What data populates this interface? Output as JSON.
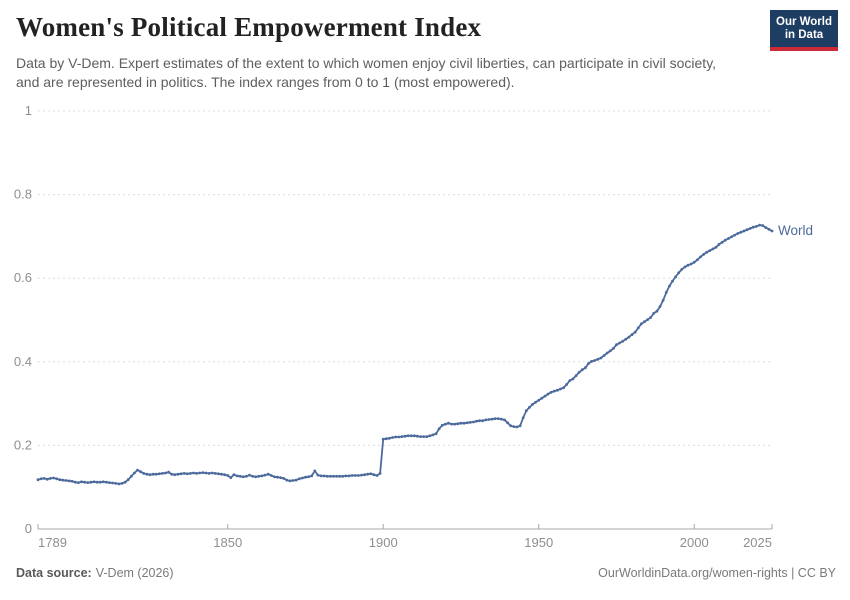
{
  "header": {
    "title": "Women's Political Empowerment Index",
    "subtitle": "Data by V-Dem. Expert estimates of the extent to which women enjoy civil liberties, can participate in civil society, and are represented in politics. The index ranges from 0 to 1 (most empowered)."
  },
  "logo": {
    "line1": "Our World",
    "line2": "in Data"
  },
  "footer": {
    "source_label": "Data source:",
    "source_value": "V-Dem (2026)",
    "credit": "OurWorldinData.org/women-rights | CC BY"
  },
  "chart_data": {
    "type": "line",
    "title": "Women's Political Empowerment Index",
    "xlabel": "",
    "ylabel": "",
    "x_range": [
      1789,
      2025
    ],
    "ylim": [
      0,
      1
    ],
    "x_ticks": [
      1789,
      1850,
      1900,
      1950,
      2000,
      2025
    ],
    "y_ticks": [
      0,
      0.2,
      0.4,
      0.6,
      0.8,
      1
    ],
    "grid": "dashed-horizontal",
    "legend_position": "end-of-line-label",
    "colors": {
      "line": "#4C6A9C",
      "grid": "#dcdcdc",
      "axis_line": "#a8a8a8",
      "axis_text": "#8f8f8f",
      "logo_navy": "#1d3d63",
      "logo_red": "#cc2a36"
    },
    "series": [
      {
        "name": "World",
        "points": [
          [
            1789,
            0.118
          ],
          [
            1790,
            0.12
          ],
          [
            1791,
            0.121
          ],
          [
            1792,
            0.119
          ],
          [
            1793,
            0.121
          ],
          [
            1794,
            0.122
          ],
          [
            1795,
            0.12
          ],
          [
            1796,
            0.118
          ],
          [
            1797,
            0.117
          ],
          [
            1798,
            0.116
          ],
          [
            1799,
            0.115
          ],
          [
            1800,
            0.114
          ],
          [
            1801,
            0.112
          ],
          [
            1802,
            0.111
          ],
          [
            1803,
            0.113
          ],
          [
            1804,
            0.112
          ],
          [
            1805,
            0.111
          ],
          [
            1806,
            0.112
          ],
          [
            1807,
            0.113
          ],
          [
            1808,
            0.112
          ],
          [
            1809,
            0.112
          ],
          [
            1810,
            0.113
          ],
          [
            1811,
            0.112
          ],
          [
            1812,
            0.111
          ],
          [
            1813,
            0.11
          ],
          [
            1814,
            0.109
          ],
          [
            1815,
            0.108
          ],
          [
            1816,
            0.109
          ],
          [
            1817,
            0.112
          ],
          [
            1818,
            0.118
          ],
          [
            1819,
            0.126
          ],
          [
            1820,
            0.134
          ],
          [
            1821,
            0.141
          ],
          [
            1822,
            0.137
          ],
          [
            1823,
            0.133
          ],
          [
            1824,
            0.131
          ],
          [
            1825,
            0.13
          ],
          [
            1826,
            0.131
          ],
          [
            1827,
            0.131
          ],
          [
            1828,
            0.132
          ],
          [
            1829,
            0.133
          ],
          [
            1830,
            0.134
          ],
          [
            1831,
            0.136
          ],
          [
            1832,
            0.131
          ],
          [
            1833,
            0.13
          ],
          [
            1834,
            0.131
          ],
          [
            1835,
            0.132
          ],
          [
            1836,
            0.133
          ],
          [
            1837,
            0.132
          ],
          [
            1838,
            0.133
          ],
          [
            1839,
            0.134
          ],
          [
            1840,
            0.133
          ],
          [
            1841,
            0.134
          ],
          [
            1842,
            0.135
          ],
          [
            1843,
            0.134
          ],
          [
            1844,
            0.133
          ],
          [
            1845,
            0.134
          ],
          [
            1846,
            0.133
          ],
          [
            1847,
            0.132
          ],
          [
            1848,
            0.131
          ],
          [
            1849,
            0.13
          ],
          [
            1850,
            0.128
          ],
          [
            1851,
            0.123
          ],
          [
            1852,
            0.13
          ],
          [
            1853,
            0.127
          ],
          [
            1854,
            0.126
          ],
          [
            1855,
            0.125
          ],
          [
            1856,
            0.126
          ],
          [
            1857,
            0.129
          ],
          [
            1858,
            0.126
          ],
          [
            1859,
            0.125
          ],
          [
            1860,
            0.126
          ],
          [
            1861,
            0.127
          ],
          [
            1862,
            0.129
          ],
          [
            1863,
            0.131
          ],
          [
            1864,
            0.128
          ],
          [
            1865,
            0.125
          ],
          [
            1866,
            0.124
          ],
          [
            1867,
            0.123
          ],
          [
            1868,
            0.121
          ],
          [
            1869,
            0.117
          ],
          [
            1870,
            0.115
          ],
          [
            1871,
            0.116
          ],
          [
            1872,
            0.117
          ],
          [
            1873,
            0.12
          ],
          [
            1874,
            0.122
          ],
          [
            1875,
            0.124
          ],
          [
            1876,
            0.125
          ],
          [
            1877,
            0.127
          ],
          [
            1878,
            0.139
          ],
          [
            1879,
            0.129
          ],
          [
            1880,
            0.127
          ],
          [
            1881,
            0.127
          ],
          [
            1882,
            0.126
          ],
          [
            1883,
            0.126
          ],
          [
            1884,
            0.126
          ],
          [
            1885,
            0.126
          ],
          [
            1886,
            0.126
          ],
          [
            1887,
            0.126
          ],
          [
            1888,
            0.127
          ],
          [
            1889,
            0.127
          ],
          [
            1890,
            0.128
          ],
          [
            1891,
            0.128
          ],
          [
            1892,
            0.128
          ],
          [
            1893,
            0.129
          ],
          [
            1894,
            0.13
          ],
          [
            1895,
            0.131
          ],
          [
            1896,
            0.132
          ],
          [
            1897,
            0.13
          ],
          [
            1898,
            0.128
          ],
          [
            1899,
            0.133
          ],
          [
            1900,
            0.215
          ],
          [
            1901,
            0.216
          ],
          [
            1902,
            0.217
          ],
          [
            1903,
            0.219
          ],
          [
            1904,
            0.22
          ],
          [
            1905,
            0.22
          ],
          [
            1906,
            0.221
          ],
          [
            1907,
            0.222
          ],
          [
            1908,
            0.223
          ],
          [
            1909,
            0.223
          ],
          [
            1910,
            0.223
          ],
          [
            1911,
            0.222
          ],
          [
            1912,
            0.221
          ],
          [
            1913,
            0.221
          ],
          [
            1914,
            0.221
          ],
          [
            1915,
            0.223
          ],
          [
            1916,
            0.225
          ],
          [
            1917,
            0.228
          ],
          [
            1918,
            0.24
          ],
          [
            1919,
            0.248
          ],
          [
            1920,
            0.251
          ],
          [
            1921,
            0.253
          ],
          [
            1922,
            0.251
          ],
          [
            1923,
            0.251
          ],
          [
            1924,
            0.252
          ],
          [
            1925,
            0.253
          ],
          [
            1926,
            0.253
          ],
          [
            1927,
            0.254
          ],
          [
            1928,
            0.255
          ],
          [
            1929,
            0.256
          ],
          [
            1930,
            0.258
          ],
          [
            1931,
            0.259
          ],
          [
            1932,
            0.259
          ],
          [
            1933,
            0.261
          ],
          [
            1934,
            0.262
          ],
          [
            1935,
            0.263
          ],
          [
            1936,
            0.264
          ],
          [
            1937,
            0.264
          ],
          [
            1938,
            0.263
          ],
          [
            1939,
            0.261
          ],
          [
            1940,
            0.254
          ],
          [
            1941,
            0.247
          ],
          [
            1942,
            0.245
          ],
          [
            1943,
            0.244
          ],
          [
            1944,
            0.247
          ],
          [
            1945,
            0.266
          ],
          [
            1946,
            0.283
          ],
          [
            1947,
            0.291
          ],
          [
            1948,
            0.298
          ],
          [
            1949,
            0.303
          ],
          [
            1950,
            0.308
          ],
          [
            1951,
            0.313
          ],
          [
            1952,
            0.318
          ],
          [
            1953,
            0.323
          ],
          [
            1954,
            0.327
          ],
          [
            1955,
            0.33
          ],
          [
            1956,
            0.332
          ],
          [
            1957,
            0.335
          ],
          [
            1958,
            0.338
          ],
          [
            1959,
            0.346
          ],
          [
            1960,
            0.355
          ],
          [
            1961,
            0.359
          ],
          [
            1962,
            0.367
          ],
          [
            1963,
            0.375
          ],
          [
            1964,
            0.381
          ],
          [
            1965,
            0.386
          ],
          [
            1966,
            0.396
          ],
          [
            1967,
            0.401
          ],
          [
            1968,
            0.403
          ],
          [
            1969,
            0.406
          ],
          [
            1970,
            0.409
          ],
          [
            1971,
            0.415
          ],
          [
            1972,
            0.421
          ],
          [
            1973,
            0.426
          ],
          [
            1974,
            0.432
          ],
          [
            1975,
            0.441
          ],
          [
            1976,
            0.445
          ],
          [
            1977,
            0.449
          ],
          [
            1978,
            0.454
          ],
          [
            1979,
            0.459
          ],
          [
            1980,
            0.465
          ],
          [
            1981,
            0.471
          ],
          [
            1982,
            0.481
          ],
          [
            1983,
            0.491
          ],
          [
            1984,
            0.496
          ],
          [
            1985,
            0.501
          ],
          [
            1986,
            0.506
          ],
          [
            1987,
            0.516
          ],
          [
            1988,
            0.521
          ],
          [
            1989,
            0.532
          ],
          [
            1990,
            0.547
          ],
          [
            1991,
            0.566
          ],
          [
            1992,
            0.581
          ],
          [
            1993,
            0.593
          ],
          [
            1994,
            0.603
          ],
          [
            1995,
            0.613
          ],
          [
            1996,
            0.621
          ],
          [
            1997,
            0.627
          ],
          [
            1998,
            0.631
          ],
          [
            1999,
            0.634
          ],
          [
            2000,
            0.638
          ],
          [
            2001,
            0.644
          ],
          [
            2002,
            0.651
          ],
          [
            2003,
            0.657
          ],
          [
            2004,
            0.662
          ],
          [
            2005,
            0.666
          ],
          [
            2006,
            0.67
          ],
          [
            2007,
            0.674
          ],
          [
            2008,
            0.681
          ],
          [
            2009,
            0.686
          ],
          [
            2010,
            0.691
          ],
          [
            2011,
            0.695
          ],
          [
            2012,
            0.699
          ],
          [
            2013,
            0.703
          ],
          [
            2014,
            0.707
          ],
          [
            2015,
            0.71
          ],
          [
            2016,
            0.713
          ],
          [
            2017,
            0.716
          ],
          [
            2018,
            0.719
          ],
          [
            2019,
            0.722
          ],
          [
            2020,
            0.724
          ],
          [
            2021,
            0.727
          ],
          [
            2022,
            0.726
          ],
          [
            2023,
            0.721
          ],
          [
            2024,
            0.717
          ],
          [
            2025,
            0.713
          ]
        ]
      }
    ]
  }
}
